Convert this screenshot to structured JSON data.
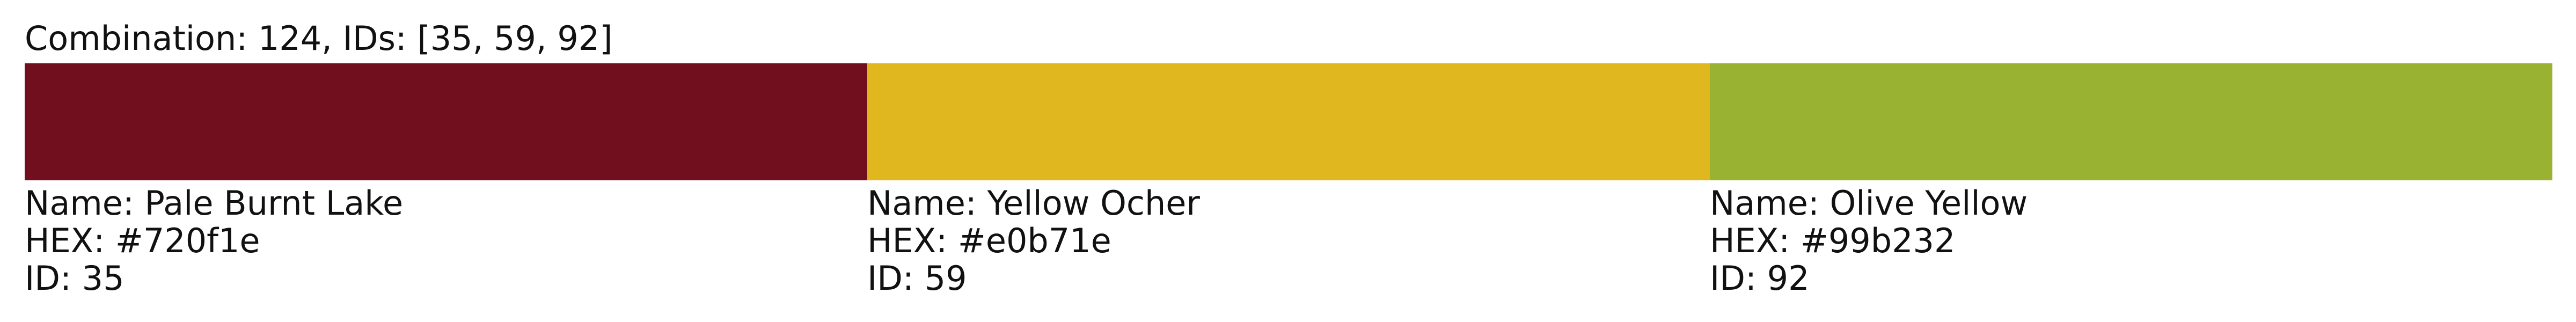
{
  "title": "Combination: 124, IDs: [35, 59, 92]",
  "swatches": [
    {
      "name_line": "Name: Pale Burnt Lake",
      "hex_line": "HEX: #720f1e",
      "id_line": "ID: 35",
      "color": "#720f1e"
    },
    {
      "name_line": "Name: Yellow Ocher",
      "hex_line": "HEX: #e0b71e",
      "id_line": "ID: 59",
      "color": "#e0b71e"
    },
    {
      "name_line": "Name: Olive Yellow",
      "hex_line": "HEX: #99b232",
      "id_line": "ID: 92",
      "color": "#99b232"
    }
  ]
}
